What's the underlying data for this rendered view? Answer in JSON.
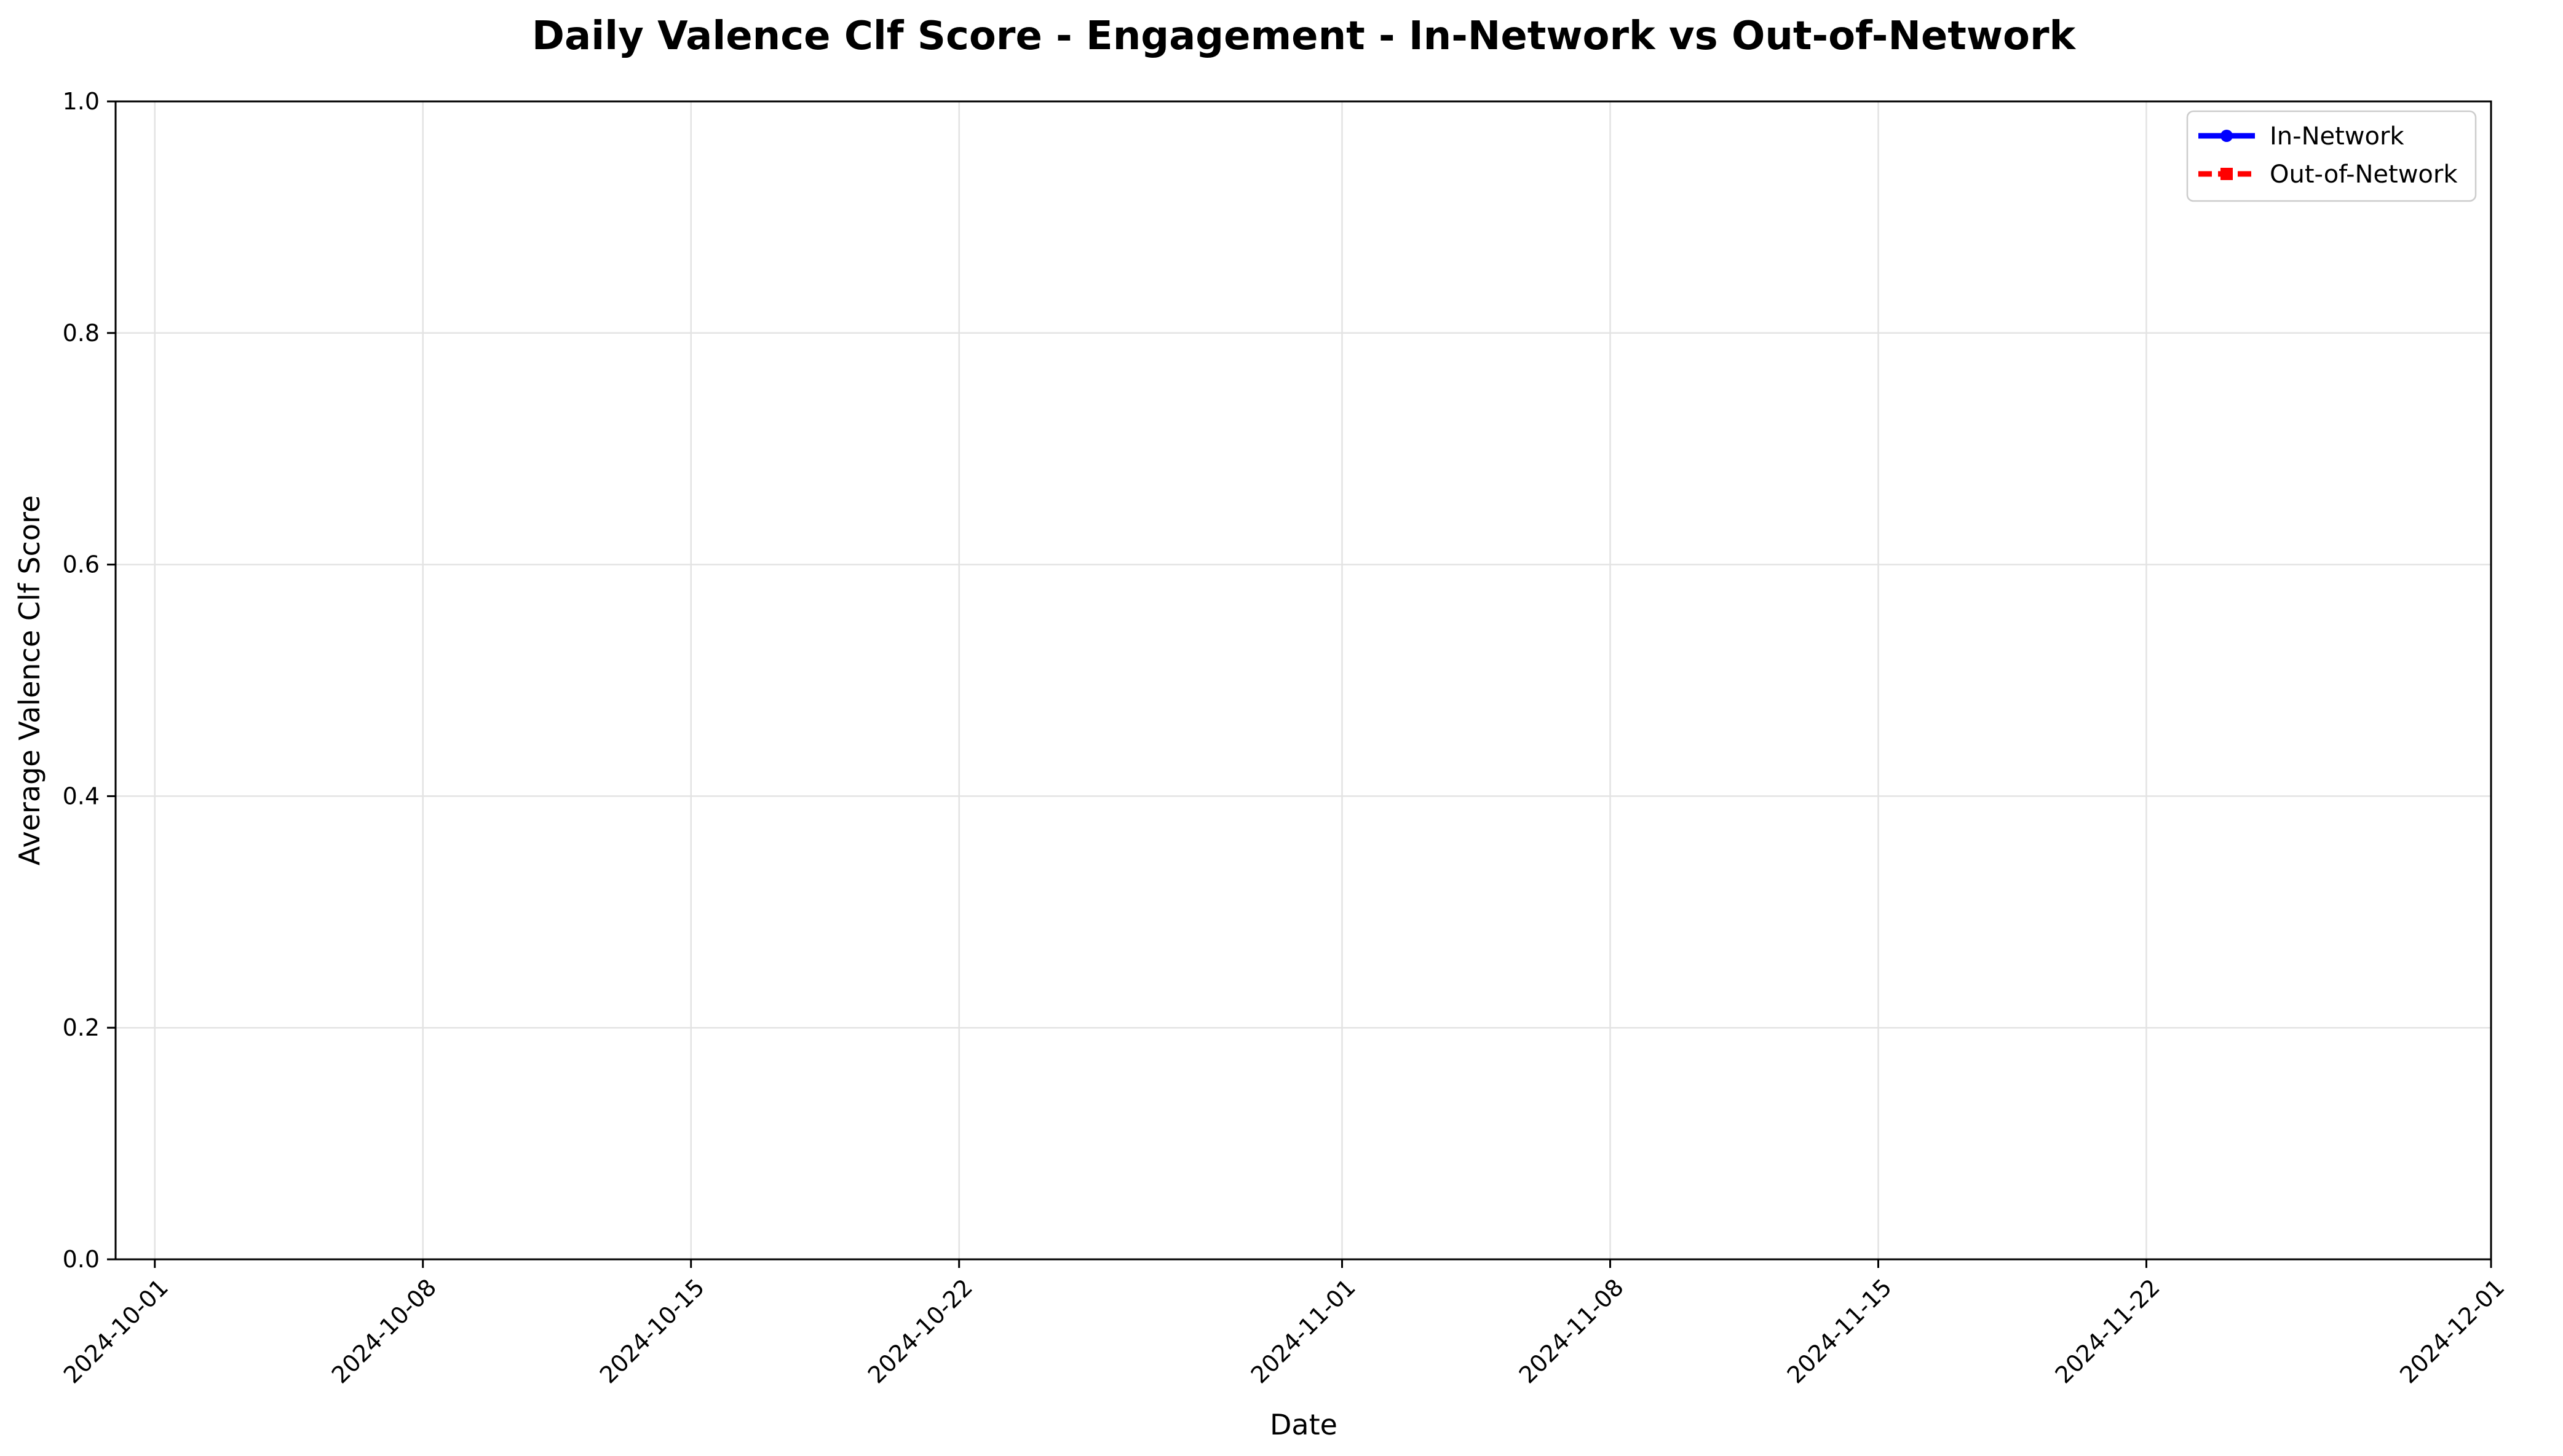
{
  "chart_data": {
    "type": "line",
    "title": "Daily Valence Clf Score - Engagement - In-Network vs Out-of-Network",
    "xlabel": "Date",
    "ylabel": "Average Valence Clf Score",
    "x_ticks": [
      "2024-10-01",
      "2024-10-08",
      "2024-10-15",
      "2024-10-22",
      "2024-11-01",
      "2024-11-08",
      "2024-11-15",
      "2024-11-22",
      "2024-12-01"
    ],
    "xlim": [
      "2024-10-01",
      "2024-12-01"
    ],
    "ylim": [
      0,
      1
    ],
    "y_ticks": [
      "0.0",
      "0.2",
      "0.4",
      "0.6",
      "0.8",
      "1.0"
    ],
    "grid": true,
    "legend_position": "top-right",
    "series": [
      {
        "name": "In-Network",
        "color": "#0000ff",
        "line_style": "solid",
        "marker": "circle",
        "x": [],
        "y": []
      },
      {
        "name": "Out-of-Network",
        "color": "#ff0000",
        "line_style": "dashed",
        "marker": "square",
        "x": [],
        "y": []
      }
    ]
  }
}
